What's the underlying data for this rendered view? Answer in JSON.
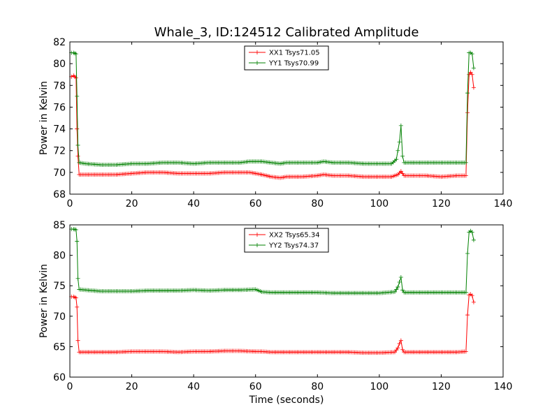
{
  "chart_data": [
    {
      "type": "line",
      "title": "Whale_3, ID:124512 Calibrated Amplitude",
      "xlabel": "",
      "ylabel": "Power in Kelvin",
      "xlim": [
        0,
        140
      ],
      "ylim": [
        68,
        82
      ],
      "xticks": [
        0,
        20,
        40,
        60,
        80,
        100,
        120,
        140
      ],
      "yticks": [
        68,
        70,
        72,
        74,
        76,
        78,
        80,
        82
      ],
      "grid": false,
      "legend": "top-center",
      "series": [
        {
          "name": "XX1 Tsys71.05",
          "color": "#ff0000",
          "x": [
            0.5,
            1.2,
            2.0,
            2.3,
            2.6,
            3.0,
            5,
            10,
            15,
            20,
            25,
            30,
            35,
            40,
            45,
            50,
            55,
            58,
            60,
            62,
            65,
            68,
            70,
            75,
            80,
            82,
            85,
            90,
            95,
            100,
            104,
            106,
            107,
            108,
            110,
            115,
            120,
            125,
            128,
            128.5,
            129,
            129.5,
            130,
            130.5
          ],
          "y": [
            78.8,
            78.9,
            78.7,
            74.0,
            71.5,
            69.8,
            69.8,
            69.8,
            69.8,
            69.9,
            70.0,
            70.0,
            69.9,
            69.9,
            69.9,
            70.0,
            70.0,
            70.0,
            69.9,
            69.8,
            69.6,
            69.5,
            69.6,
            69.6,
            69.7,
            69.8,
            69.7,
            69.7,
            69.6,
            69.6,
            69.6,
            69.8,
            70.1,
            69.7,
            69.7,
            69.7,
            69.6,
            69.7,
            69.7,
            75.5,
            79.0,
            79.2,
            79.0,
            77.8
          ]
        },
        {
          "name": "YY1 Tsys70.99",
          "color": "#008000",
          "x": [
            0.5,
            1.2,
            2.0,
            2.3,
            2.6,
            3.0,
            5,
            10,
            15,
            20,
            25,
            30,
            35,
            40,
            45,
            50,
            55,
            58,
            60,
            62,
            65,
            68,
            70,
            75,
            80,
            82,
            85,
            90,
            95,
            100,
            104,
            105.5,
            106,
            106.5,
            107,
            107.5,
            108,
            110,
            115,
            120,
            125,
            128,
            128.5,
            129,
            129.5,
            130,
            130.5
          ],
          "y": [
            81.0,
            81.0,
            80.9,
            77.0,
            72.5,
            70.9,
            70.8,
            70.7,
            70.7,
            70.8,
            70.8,
            70.9,
            70.9,
            70.8,
            70.9,
            70.9,
            70.9,
            71.0,
            71.0,
            71.0,
            70.9,
            70.8,
            70.9,
            70.9,
            70.9,
            71.0,
            70.9,
            70.9,
            70.8,
            70.8,
            70.8,
            71.2,
            72.0,
            72.8,
            74.3,
            71.5,
            70.9,
            70.9,
            70.9,
            70.9,
            70.9,
            70.9,
            77.3,
            81.0,
            81.0,
            80.9,
            79.6
          ]
        }
      ]
    },
    {
      "type": "line",
      "title": "",
      "xlabel": "Time (seconds)",
      "ylabel": "Power in Kelvin",
      "xlim": [
        0,
        140
      ],
      "ylim": [
        60,
        85
      ],
      "xticks": [
        0,
        20,
        40,
        60,
        80,
        100,
        120,
        140
      ],
      "yticks": [
        60,
        65,
        70,
        75,
        80,
        85
      ],
      "grid": false,
      "legend": "top-center",
      "series": [
        {
          "name": "XX2 Tsys65.34",
          "color": "#ff0000",
          "x": [
            0.5,
            1.2,
            2.0,
            2.3,
            2.6,
            3.0,
            5,
            10,
            15,
            20,
            25,
            30,
            35,
            40,
            45,
            50,
            55,
            60,
            62,
            65,
            70,
            75,
            80,
            85,
            90,
            95,
            100,
            105,
            106,
            106.5,
            107,
            107.5,
            108,
            110,
            115,
            120,
            125,
            128,
            128.5,
            129,
            129.5,
            130,
            130.5
          ],
          "y": [
            73.2,
            73.2,
            73.0,
            71.5,
            66.0,
            64.1,
            64.1,
            64.1,
            64.1,
            64.2,
            64.2,
            64.2,
            64.1,
            64.2,
            64.2,
            64.3,
            64.3,
            64.2,
            64.2,
            64.1,
            64.1,
            64.1,
            64.1,
            64.1,
            64.1,
            64.0,
            64.0,
            64.1,
            64.8,
            65.5,
            66.0,
            64.5,
            64.1,
            64.1,
            64.1,
            64.1,
            64.1,
            64.2,
            70.2,
            73.5,
            73.6,
            73.4,
            72.3
          ]
        },
        {
          "name": "YY2 Tsys74.37",
          "color": "#008000",
          "x": [
            0.5,
            1.2,
            2.0,
            2.3,
            2.6,
            3.0,
            5,
            10,
            15,
            20,
            25,
            30,
            35,
            40,
            45,
            50,
            55,
            60,
            62,
            65,
            70,
            75,
            80,
            85,
            90,
            95,
            100,
            105,
            106,
            106.5,
            107,
            107.5,
            108,
            110,
            115,
            120,
            125,
            128,
            128.5,
            129,
            129.5,
            130,
            130.5
          ],
          "y": [
            84.3,
            84.3,
            84.2,
            82.3,
            76.2,
            74.4,
            74.3,
            74.1,
            74.1,
            74.1,
            74.2,
            74.2,
            74.2,
            74.3,
            74.2,
            74.3,
            74.3,
            74.4,
            74.0,
            73.9,
            73.9,
            73.9,
            73.9,
            73.8,
            73.8,
            73.8,
            73.8,
            74.0,
            74.8,
            75.6,
            76.4,
            74.3,
            73.9,
            73.9,
            73.9,
            73.9,
            73.9,
            73.9,
            80.3,
            83.8,
            84.0,
            83.8,
            82.5
          ]
        }
      ]
    }
  ]
}
